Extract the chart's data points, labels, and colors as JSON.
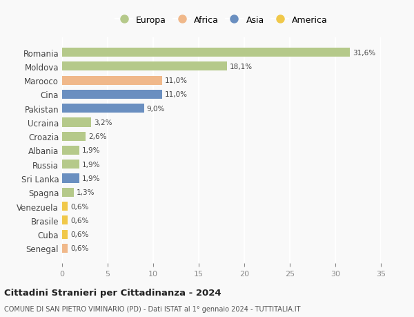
{
  "labels": [
    "Romania",
    "Moldova",
    "Marooco",
    "Cina",
    "Pakistan",
    "Ucraina",
    "Croazia",
    "Albania",
    "Russia",
    "Sri Lanka",
    "Spagna",
    "Venezuela",
    "Brasile",
    "Cuba",
    "Senegal"
  ],
  "values": [
    31.6,
    18.1,
    11.0,
    11.0,
    9.0,
    3.2,
    2.6,
    1.9,
    1.9,
    1.9,
    1.3,
    0.6,
    0.6,
    0.6,
    0.6
  ],
  "value_labels": [
    "31,6%",
    "18,1%",
    "11,0%",
    "11,0%",
    "9,0%",
    "3,2%",
    "2,6%",
    "1,9%",
    "1,9%",
    "1,9%",
    "1,3%",
    "0,6%",
    "0,6%",
    "0,6%",
    "0,6%"
  ],
  "continents": [
    "Europa",
    "Europa",
    "Africa",
    "Asia",
    "Asia",
    "Europa",
    "Europa",
    "Europa",
    "Europa",
    "Asia",
    "Europa",
    "America",
    "America",
    "America",
    "Africa"
  ],
  "continent_colors": {
    "Europa": "#b5c98a",
    "Africa": "#f0b88a",
    "Asia": "#6a8fc0",
    "America": "#f0c84a"
  },
  "legend_order": [
    "Europa",
    "Africa",
    "Asia",
    "America"
  ],
  "title": "Cittadini Stranieri per Cittadinanza - 2024",
  "subtitle": "COMUNE DI SAN PIETRO VIMINARIO (PD) - Dati ISTAT al 1° gennaio 2024 - TUTTITALIA.IT",
  "xlim": [
    0,
    35
  ],
  "xticks": [
    0,
    5,
    10,
    15,
    20,
    25,
    30,
    35
  ],
  "background_color": "#f9f9f9",
  "grid_color": "#ffffff",
  "bar_height": 0.65
}
